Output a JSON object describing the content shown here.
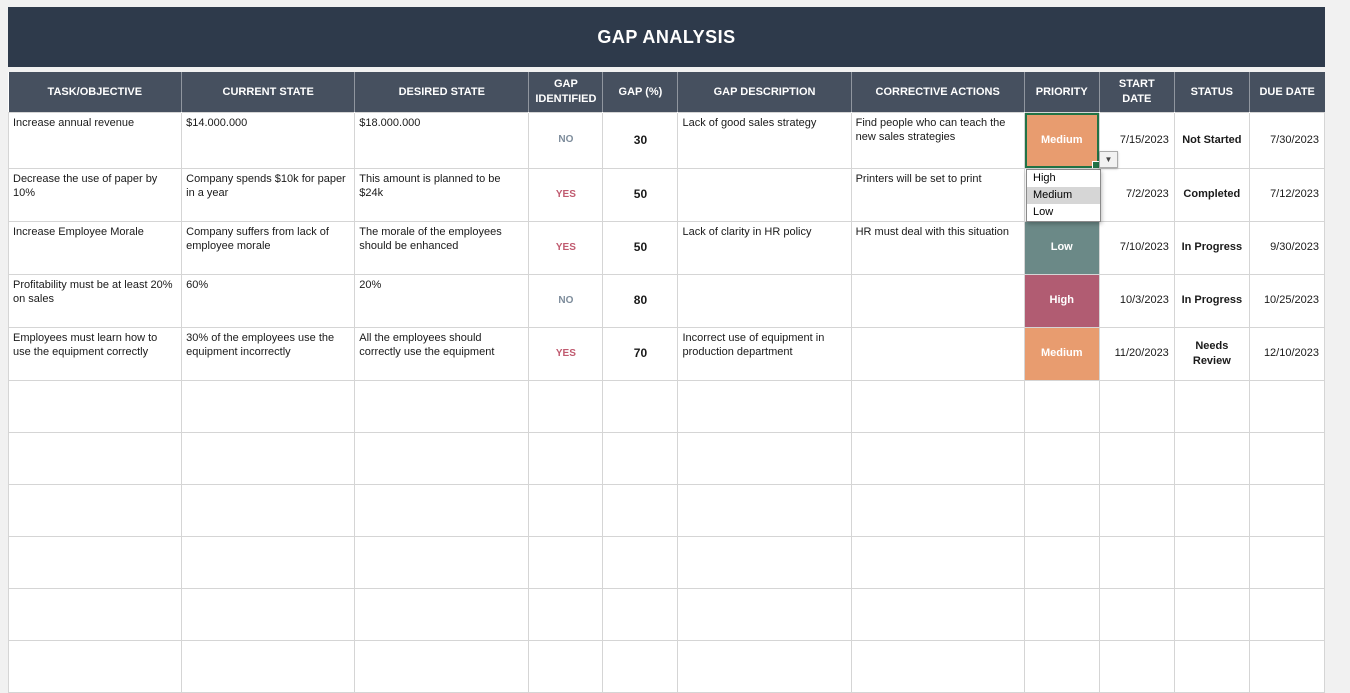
{
  "title": "GAP ANALYSIS",
  "columns": [
    "TASK/OBJECTIVE",
    "CURRENT STATE",
    "DESIRED STATE",
    "GAP IDENTIFIED",
    "GAP (%)",
    "GAP DESCRIPTION",
    "CORRECTIVE ACTIONS",
    "PRIORITY",
    "START DATE",
    "STATUS",
    "DUE DATE"
  ],
  "rows": [
    {
      "task": "Increase annual revenue",
      "current": "$14.000.000",
      "desired": "$18.000.000",
      "gap_identified": "NO",
      "gap_color": "#7D8C9B",
      "gap_pct": "30",
      "description": "Lack of good sales strategy",
      "actions": "Find people who can teach the new sales strategies",
      "priority": "Medium",
      "priority_color": "#E89C6F",
      "start_date": "7/15/2023",
      "status": "Not Started",
      "due_date": "7/30/2023"
    },
    {
      "task": "Decrease the use of paper by 10%",
      "current": "Company spends $10k for paper in a year",
      "desired": "This amount is planned to be $24k",
      "gap_identified": "YES",
      "gap_color": "#C05A6F",
      "gap_pct": "50",
      "description": "",
      "actions": "Printers will be set to print",
      "priority": "",
      "priority_color": "#FFFFFF",
      "start_date": "7/2/2023",
      "status": "Completed",
      "due_date": "7/12/2023"
    },
    {
      "task": "Increase Employee Morale",
      "current": "Company suffers from lack of employee morale",
      "desired": "The morale of the employees should be enhanced",
      "gap_identified": "YES",
      "gap_color": "#C05A6F",
      "gap_pct": "50",
      "description": "Lack of clarity in HR policy",
      "actions": "HR must deal with this situation",
      "priority": "Low",
      "priority_color": "#6B8987",
      "start_date": "7/10/2023",
      "status": "In Progress",
      "due_date": "9/30/2023"
    },
    {
      "task": "Profitability must be at least 20% on sales",
      "current": "60%",
      "desired": "20%",
      "gap_identified": "NO",
      "gap_color": "#7D8C9B",
      "gap_pct": "80",
      "description": "",
      "actions": "",
      "priority": "High",
      "priority_color": "#B15C72",
      "start_date": "10/3/2023",
      "status": "In Progress",
      "due_date": "10/25/2023"
    },
    {
      "task": "Employees must learn how to use the equipment correctly",
      "current": "30% of the employees use the equipment incorrectly",
      "desired": "All the employees should correctly use the equipment",
      "gap_identified": "YES",
      "gap_color": "#C05A6F",
      "gap_pct": "70",
      "description": "Incorrect use of equipment in production department",
      "actions": "",
      "priority": "Medium",
      "priority_color": "#E89C6F",
      "start_date": "11/20/2023",
      "status": "Needs Review",
      "due_date": "12/10/2023"
    }
  ],
  "dropdown": {
    "options": [
      "High",
      "Medium",
      "Low"
    ],
    "highlighted": "Medium",
    "arrow_icon": "▼"
  },
  "empty_row_count": 6,
  "colors": {
    "title_bg": "#2E3A4B",
    "header_bg": "#46505F",
    "gridline": "#D5D5D5",
    "selection_green": "#217346",
    "priority_medium": "#E89C6F",
    "priority_high": "#B15C72",
    "priority_low": "#6B8987",
    "yes_text": "#C05A6F",
    "no_text": "#7D8C9B",
    "dropdown_highlight": "#D6D6D6",
    "page_bg": "#F1F1F1"
  }
}
